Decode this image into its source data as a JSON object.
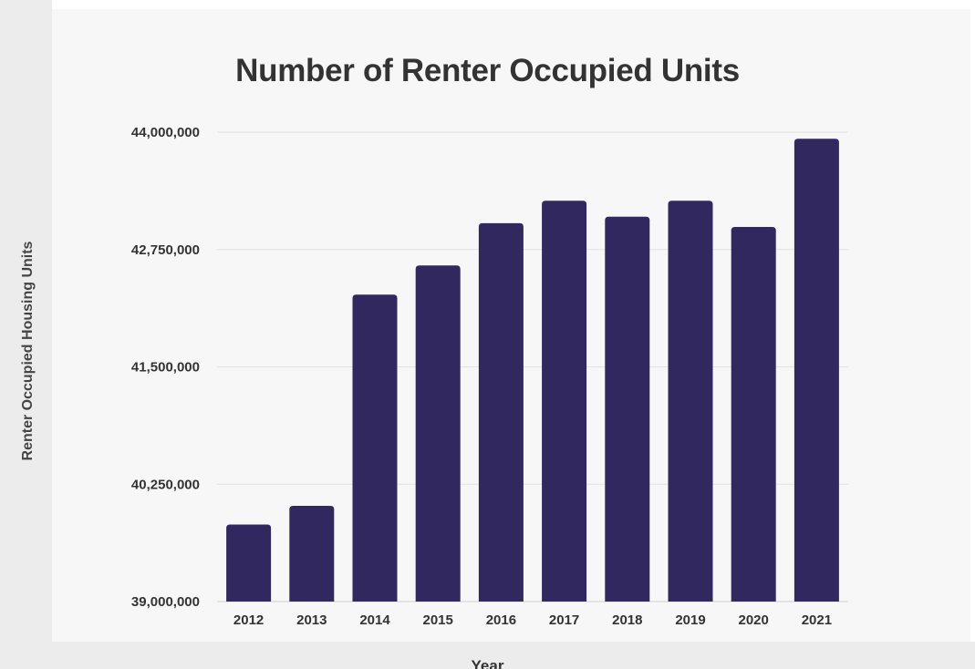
{
  "chart_data": {
    "type": "bar",
    "title": "Number of Renter Occupied Units",
    "xlabel": "Year",
    "ylabel": "Renter Occupied Housing Units",
    "categories": [
      "2012",
      "2013",
      "2014",
      "2015",
      "2016",
      "2017",
      "2018",
      "2019",
      "2020",
      "2021"
    ],
    "values": [
      39820000,
      40020000,
      42270000,
      42580000,
      43030000,
      43270000,
      43100000,
      43270000,
      42990000,
      43930000
    ],
    "ylim": [
      39000000,
      44000000
    ],
    "yticks": [
      39000000,
      40250000,
      41500000,
      42750000,
      44000000
    ],
    "ytick_labels": [
      "39,000,000",
      "40,250,000",
      "41,500,000",
      "42,750,000",
      "44,000,000"
    ],
    "grid": true,
    "bar_color": "#30285e"
  }
}
